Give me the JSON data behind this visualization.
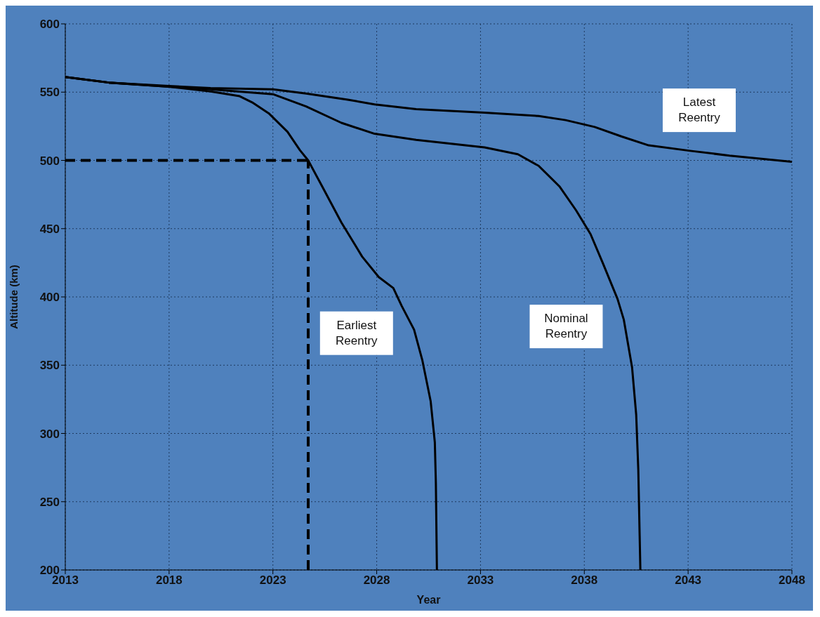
{
  "chart_data": {
    "type": "line",
    "xlabel": "Year",
    "ylabel": "Altitude (km)",
    "xlim": [
      2013,
      2048
    ],
    "xticks": [
      2013,
      2018,
      2023,
      2028,
      2033,
      2038,
      2043,
      2048
    ],
    "ylim": [
      200,
      600
    ],
    "yticks": [
      200,
      250,
      300,
      350,
      400,
      450,
      500,
      550,
      600
    ],
    "grid": true,
    "marker": "none",
    "line_style": "solid",
    "series": [
      {
        "name": "Earliest Reentry",
        "color": "#000000",
        "x": [
          2013,
          2015.1,
          2018,
          2020,
          2021.4,
          2022,
          2022.8,
          2023.7,
          2024.3,
          2024.7,
          2025.3,
          2026.3,
          2027.3,
          2028.1,
          2028.8,
          2029.2,
          2029.8,
          2030.2,
          2030.6,
          2030.8,
          2030.85,
          2030.9
        ],
        "values": [
          561,
          557,
          554,
          550.5,
          547,
          542.5,
          534.5,
          521,
          507.5,
          500,
          483,
          454.5,
          429.5,
          414.5,
          406.5,
          393.5,
          376,
          353.5,
          323.5,
          293.5,
          263.5,
          200
        ]
      },
      {
        "name": "Nominal Reentry",
        "color": "#000000",
        "x": [
          2013,
          2015.1,
          2018,
          2020,
          2023,
          2024.6,
          2026.3,
          2027.9,
          2029.9,
          2033.2,
          2034.8,
          2035.8,
          2036.8,
          2037.6,
          2038.3,
          2038.9,
          2039.6,
          2039.9,
          2040.3,
          2040.5,
          2040.6,
          2040.7
        ],
        "values": [
          561,
          557,
          554,
          552,
          548.5,
          539.5,
          527.5,
          519.5,
          515,
          509.5,
          504.5,
          496,
          481,
          463.5,
          446,
          424.5,
          398.5,
          383.5,
          348.5,
          313.5,
          273.5,
          200
        ]
      },
      {
        "name": "Latest Reentry",
        "color": "#000000",
        "x": [
          2013,
          2015.1,
          2018,
          2020,
          2023,
          2024.6,
          2026.6,
          2027.9,
          2029.9,
          2033.2,
          2035.8,
          2037.1,
          2038.5,
          2039.8,
          2041.1,
          2043.1,
          2045,
          2048
        ],
        "values": [
          561,
          557,
          554.5,
          553,
          552,
          549,
          544.5,
          541,
          537.5,
          535,
          532.5,
          529.5,
          524.5,
          517.5,
          511,
          507,
          503.5,
          499
        ]
      }
    ],
    "ref_lines": [
      {
        "axis": "y",
        "value": 500,
        "color": "#000000",
        "line_style": "dashed"
      },
      {
        "axis": "x",
        "value": 2024.7,
        "color": "#000000",
        "line_style": "dashed"
      }
    ]
  }
}
